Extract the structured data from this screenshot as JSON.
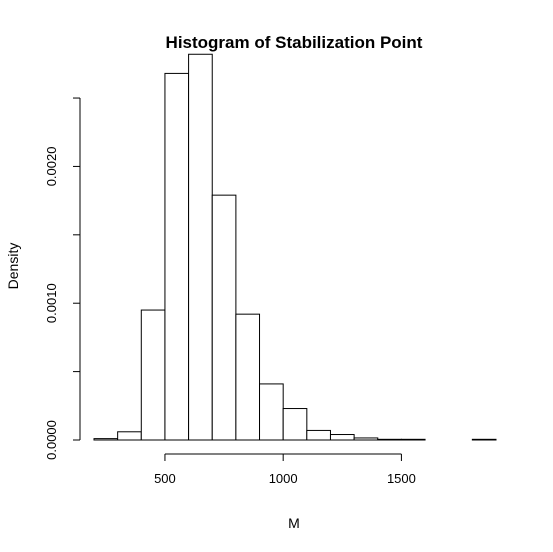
{
  "chart_data": {
    "type": "bar",
    "title": "Histogram of Stabilization Point",
    "xlabel": "M",
    "ylabel": "Density",
    "x_ticks": [
      500,
      1000,
      1500
    ],
    "x_tick_labels": [
      "500",
      "1000",
      "1500"
    ],
    "y_ticks": [
      0.0,
      0.0005,
      0.001,
      0.0015,
      0.002,
      0.0025
    ],
    "y_tick_labels": [
      "0.0000",
      "",
      "0.0010",
      "",
      "0.0020",
      ""
    ],
    "xlim": [
      200,
      1900
    ],
    "ylim": [
      0,
      0.0028
    ],
    "bins": [
      {
        "x0": 200,
        "x1": 300,
        "density": 1e-05
      },
      {
        "x0": 300,
        "x1": 400,
        "density": 6e-05
      },
      {
        "x0": 400,
        "x1": 500,
        "density": 0.00095
      },
      {
        "x0": 500,
        "x1": 600,
        "density": 0.00268
      },
      {
        "x0": 600,
        "x1": 700,
        "density": 0.00282
      },
      {
        "x0": 700,
        "x1": 800,
        "density": 0.00179
      },
      {
        "x0": 800,
        "x1": 900,
        "density": 0.00092
      },
      {
        "x0": 900,
        "x1": 1000,
        "density": 0.00041
      },
      {
        "x0": 1000,
        "x1": 1100,
        "density": 0.00023
      },
      {
        "x0": 1100,
        "x1": 1200,
        "density": 7e-05
      },
      {
        "x0": 1200,
        "x1": 1300,
        "density": 4e-05
      },
      {
        "x0": 1300,
        "x1": 1400,
        "density": 1.5e-05
      },
      {
        "x0": 1400,
        "x1": 1500,
        "density": 5e-06
      },
      {
        "x0": 1500,
        "x1": 1600,
        "density": 5e-06
      },
      {
        "x0": 1600,
        "x1": 1700,
        "density": 0.0
      },
      {
        "x0": 1700,
        "x1": 1800,
        "density": 0.0
      },
      {
        "x0": 1800,
        "x1": 1900,
        "density": 5e-06
      }
    ]
  }
}
